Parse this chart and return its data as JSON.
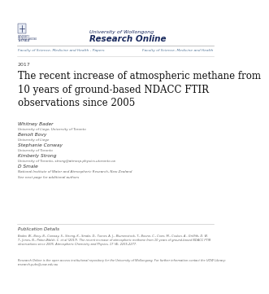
{
  "bg_color": "#ffffff",
  "navy": "#1a2a5e",
  "gray_text": "#557799",
  "year": "2017",
  "title": "The recent increase of atmospheric methane from\n10 years of ground-based NDACC FTIR\nobservations since 2005",
  "university_line1": "University of Wollongong",
  "university_line2": "Research Online",
  "faculty_left": "Faculty of Science, Medicine and Health - Papers",
  "faculty_right": "Faculty of Science, Medicine and Health",
  "logo_text": "UNIVERSITY\nOF WOLLONGONG\nAUSTRALIA",
  "authors": [
    {
      "name": "Whitney Bader",
      "affil": "University of Liege, University of Toronto"
    },
    {
      "name": "Benoit Bovy",
      "affil": "University of Liege"
    },
    {
      "name": "Stephanie Conway",
      "affil": "University of Toronto"
    },
    {
      "name": "Kimberly Strong",
      "affil": "University of Toronto, strong@atmosp.physics.utoronto.ca"
    },
    {
      "name": "D Smale",
      "affil": "National Institute of Water and Atmospheric Research, New Zealand"
    }
  ],
  "see_next": "See next page for additional authors",
  "pub_details_title": "Publication Details",
  "pub_details_text": "Bader, W., Bovy, B., Conway, S., Strong, K., Smale, D., Turner, A. J., Blumenstock, T., Boone, C., Coen, M., Coulon, A., Griffith, D. W.\nT., Jones, N., Paton-Walsh, C. et al (2017). The recent increase of atmospheric methane from 10 years of ground-based NDACC FTIR\nobservations since 2005. Atmospheric Chemistry and Physics, 17 (4), 2255-2277.",
  "research_online_note": "Research Online is the open access institutional repository for the University of Wollongong. For further information contact the UOW Library:\nresearch-pubs@uow.edu.au"
}
